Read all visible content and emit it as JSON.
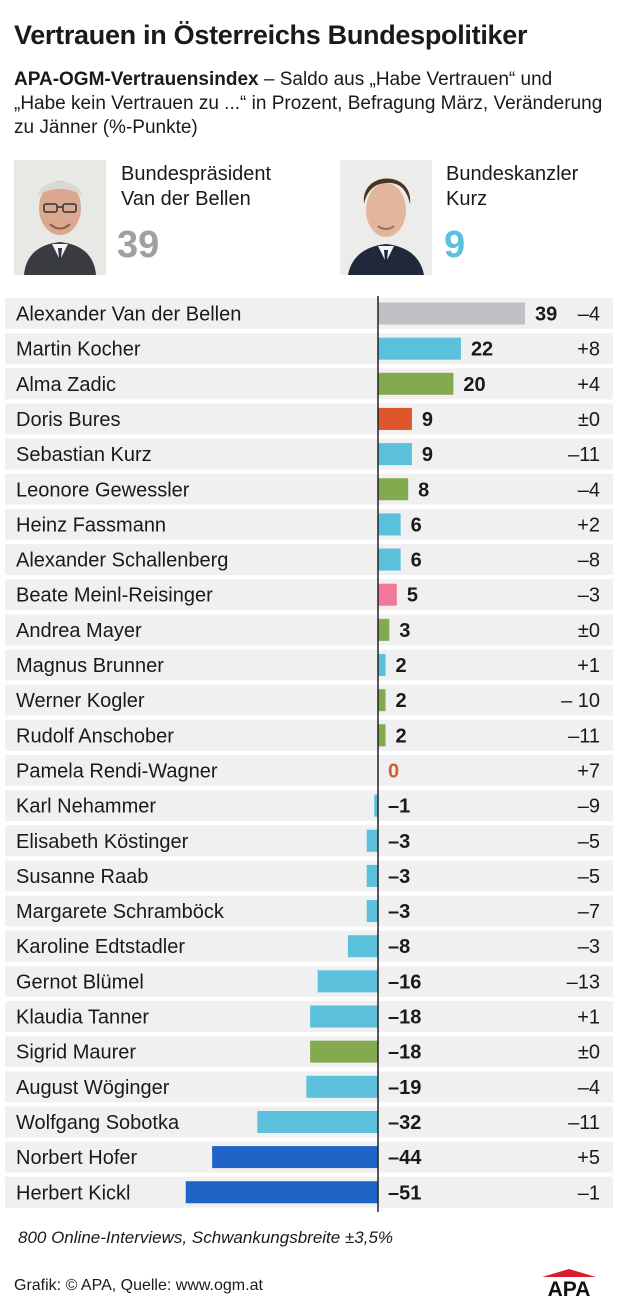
{
  "title": "Vertrauen in Österreichs Bundespolitiker",
  "subtitle": {
    "bold": "APA-OGM-Vertrauensindex",
    "rest": " – Saldo aus „Habe Vertrauen“ und „Habe kein Vertrauen zu ...“ in Prozent, Befragung März, Veränderung zu Jänner (%-Punkte)"
  },
  "highlights": [
    {
      "role": "Bundespräsident",
      "name": "Van der Bellen",
      "value": "39",
      "color": "#9ea0a3"
    },
    {
      "role": "Bundeskanzler",
      "name": "Kurz",
      "value": "9",
      "color": "#5bc0de"
    }
  ],
  "colors": {
    "grey": "#c1c1c5",
    "turquoise": "#5ac0dc",
    "green": "#84aa4f",
    "red": "#e0562c",
    "pink": "#f2799a",
    "blue": "#2063c6",
    "row_background": "#f0f0f0",
    "zero_label": "#e0562c"
  },
  "chart_data": {
    "type": "bar",
    "orientation": "horizontal",
    "categories": [
      "Alexander Van der Bellen",
      "Martin Kocher",
      "Alma Zadic",
      "Doris Bures",
      "Sebastian Kurz",
      "Leonore Gewessler",
      "Heinz Fassmann",
      "Alexander Schallenberg",
      "Beate Meinl-Reisinger",
      "Andrea Mayer",
      "Magnus Brunner",
      "Werner Kogler",
      "Rudolf Anschober",
      "Pamela Rendi-Wagner",
      "Karl Nehammer",
      "Elisabeth Köstinger",
      "Susanne Raab",
      "Margarete Schramböck",
      "Karoline Edtstadler",
      "Gernot Blümel",
      "Klaudia Tanner",
      "Sigrid Maurer",
      "August Wöginger",
      "Wolfgang Sobotka",
      "Norbert Hofer",
      "Herbert Kickl"
    ],
    "values": [
      39,
      22,
      20,
      9,
      9,
      8,
      6,
      6,
      5,
      3,
      2,
      2,
      2,
      0,
      -1,
      -3,
      -3,
      -3,
      -8,
      -16,
      -18,
      -18,
      -19,
      -32,
      -44,
      -51
    ],
    "value_labels": [
      "39",
      "22",
      "20",
      "9",
      "9",
      "8",
      "6",
      "6",
      "5",
      "3",
      "2",
      "2",
      "2",
      "0",
      "–1",
      "–3",
      "–3",
      "–3",
      "–8",
      "–16",
      "–18",
      "–18",
      "–19",
      "–32",
      "–44",
      "–51"
    ],
    "changes": [
      "–4",
      "+8",
      "+4",
      "±0",
      "–11",
      "–4",
      "+2",
      "–8",
      "–3",
      "±0",
      "+1",
      "– 10",
      "–11",
      "+7",
      "–9",
      "–5",
      "–5",
      "–7",
      "–3",
      "–13",
      "+1",
      "±0",
      "–4",
      "–11",
      "+5",
      "–1"
    ],
    "bar_colors": [
      "grey",
      "turquoise",
      "green",
      "red",
      "turquoise",
      "green",
      "turquoise",
      "turquoise",
      "pink",
      "green",
      "turquoise",
      "green",
      "green",
      "red",
      "turquoise",
      "turquoise",
      "turquoise",
      "turquoise",
      "turquoise",
      "turquoise",
      "turquoise",
      "green",
      "turquoise",
      "turquoise",
      "blue",
      "blue"
    ],
    "xlim": [
      -51,
      39
    ]
  },
  "footnote": "800 Online-Interviews, Schwankungsbreite ±3,5%",
  "credit": "Grafik: © APA, Quelle: www.ogm.at",
  "logo_text": "APA"
}
